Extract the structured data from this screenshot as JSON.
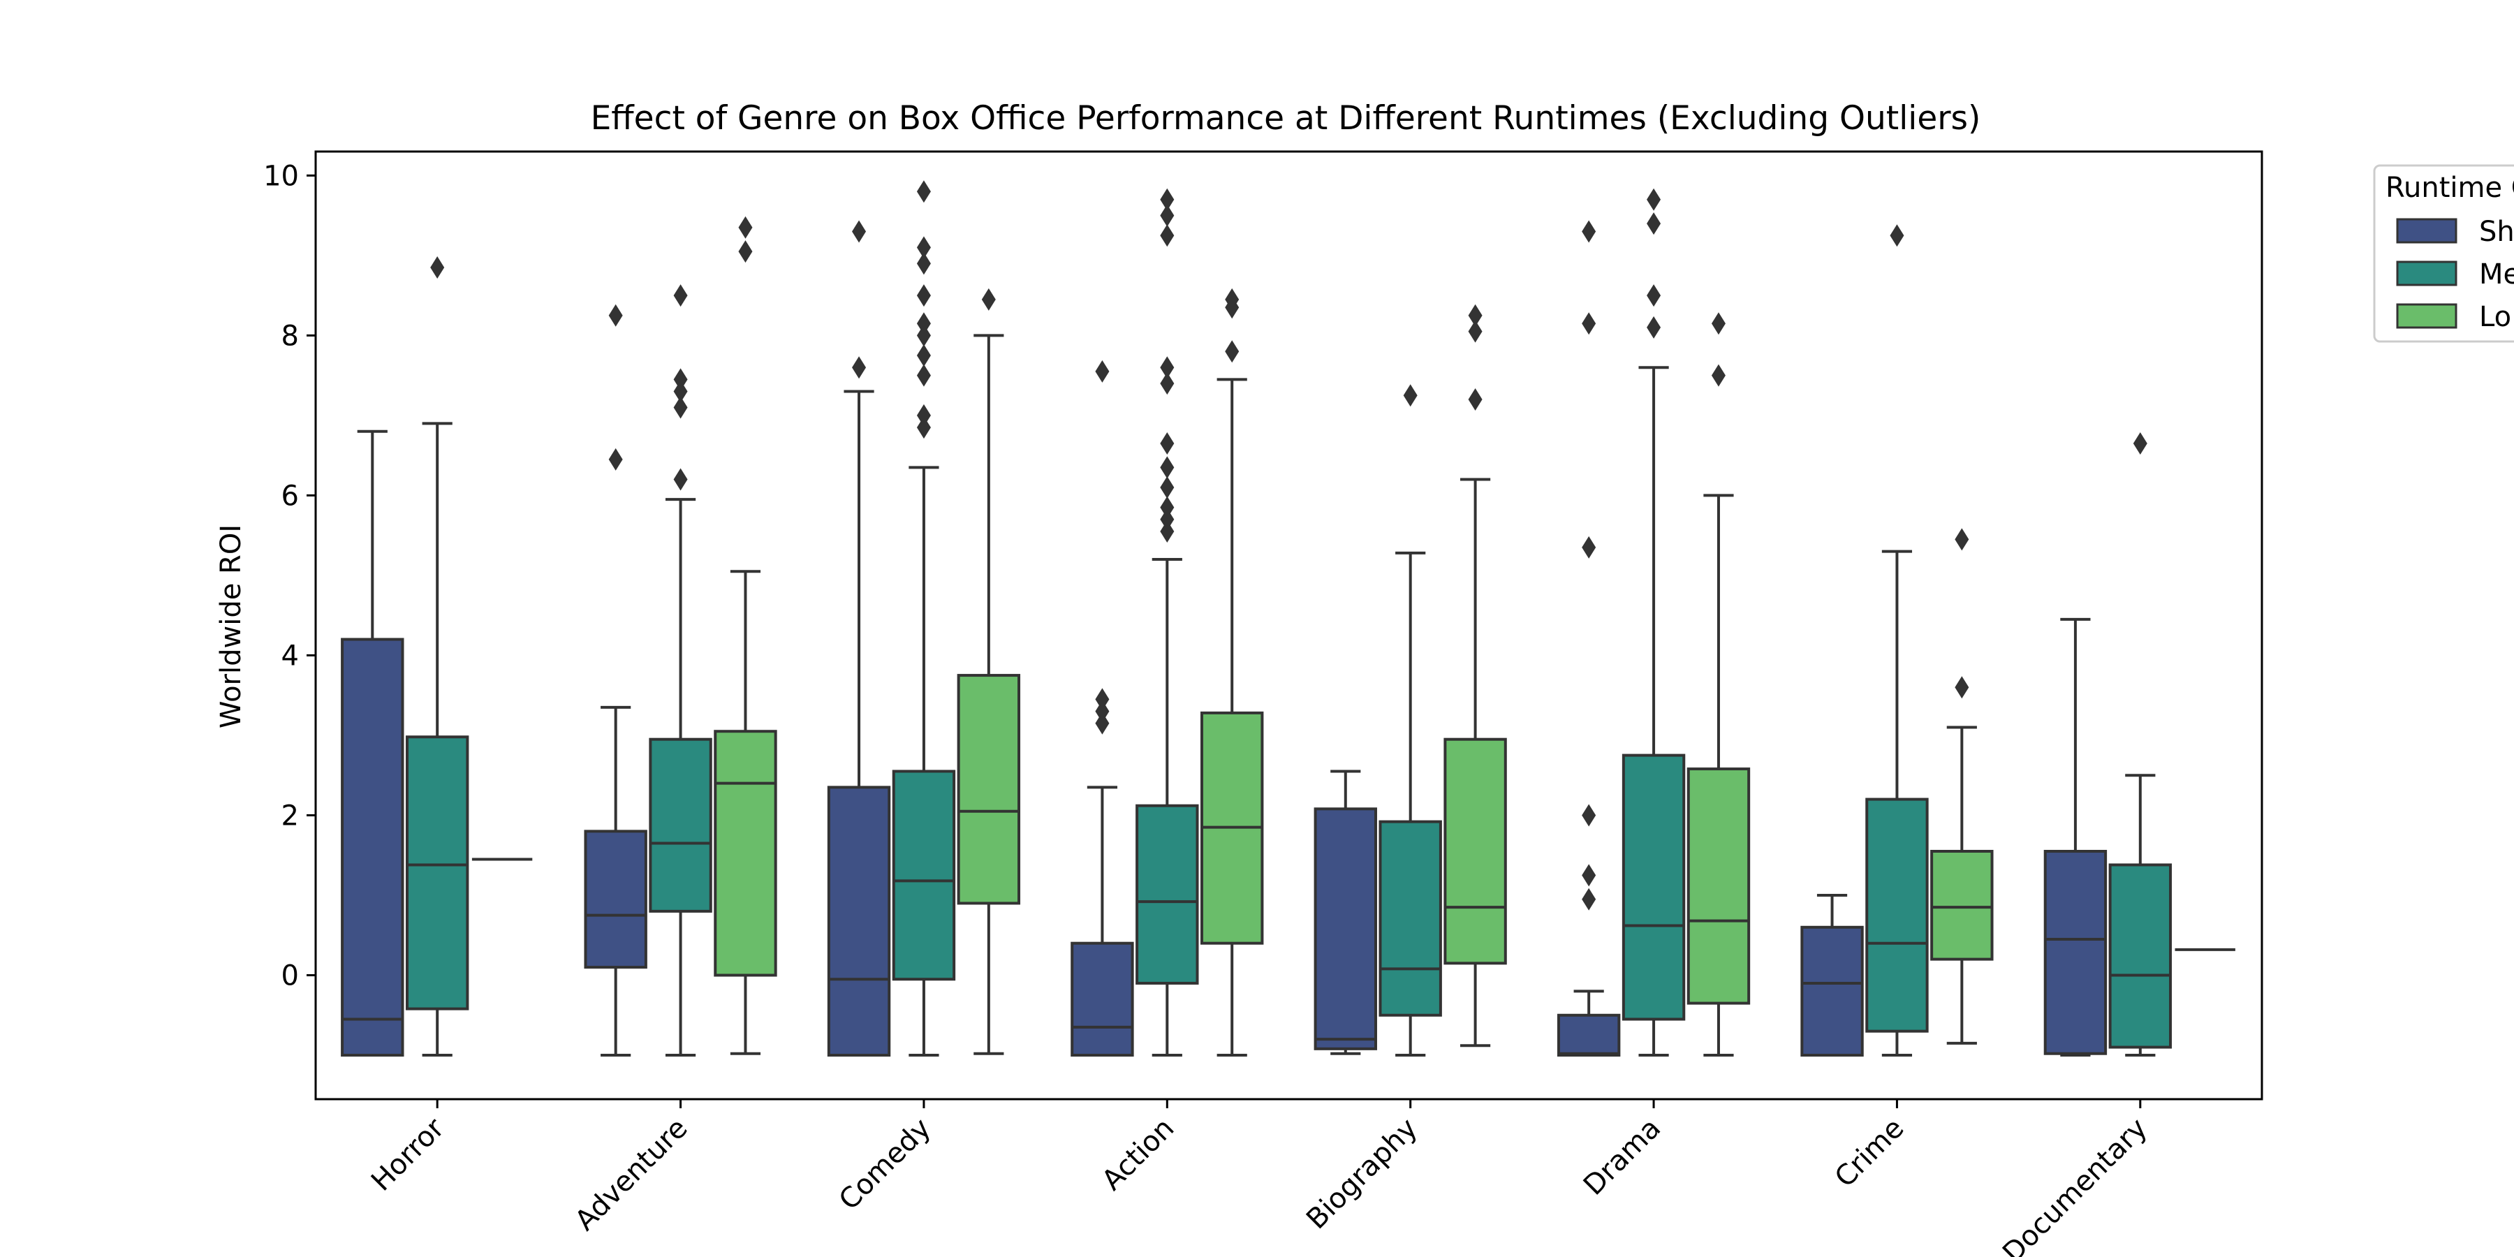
{
  "chart_data": {
    "type": "box",
    "title": "Effect of Genre on Box Office Performance at Different Runtimes (Excluding Outliers)",
    "xlabel": "",
    "ylabel": "Worldwide ROI",
    "ylim": [
      -1.55,
      10.3
    ],
    "yticks": [
      0,
      2,
      4,
      6,
      8,
      10
    ],
    "grid": false,
    "categories": [
      "Horror",
      "Adventure",
      "Comedy",
      "Action",
      "Biography",
      "Drama",
      "Crime",
      "Documentary"
    ],
    "legend": {
      "title": "Runtime Category",
      "placement": "outside-top-right",
      "entries_visible": [
        "Sh",
        "Me",
        "Lo"
      ]
    },
    "series": [
      {
        "color": "#3f5185",
        "boxes": [
          {
            "q1": -1.0,
            "median": -0.55,
            "q3": 4.2,
            "whislo": -1.0,
            "whishi": 6.8,
            "fliers": []
          },
          {
            "q1": 0.1,
            "median": 0.75,
            "q3": 1.8,
            "whislo": -1.0,
            "whishi": 3.35,
            "fliers": [
              6.45,
              8.25
            ]
          },
          {
            "q1": -1.0,
            "median": -0.05,
            "q3": 2.35,
            "whislo": -1.0,
            "whishi": 7.3,
            "fliers": [
              7.6,
              9.3
            ]
          },
          {
            "q1": -1.0,
            "median": -0.65,
            "q3": 0.4,
            "whislo": -1.0,
            "whishi": 2.35,
            "fliers": [
              3.15,
              3.3,
              3.45,
              7.55
            ]
          },
          {
            "q1": -0.92,
            "median": -0.8,
            "q3": 2.08,
            "whislo": -0.98,
            "whishi": 2.55,
            "fliers": []
          },
          {
            "q1": -1.0,
            "median": -0.98,
            "q3": -0.5,
            "whislo": -1.0,
            "whishi": -0.2,
            "fliers": [
              0.95,
              1.25,
              2.0,
              5.35,
              8.15,
              9.3
            ]
          },
          {
            "q1": -1.0,
            "median": -0.1,
            "q3": 0.6,
            "whislo": -1.0,
            "whishi": 1.0,
            "fliers": []
          },
          {
            "q1": -0.98,
            "median": 0.45,
            "q3": 1.55,
            "whislo": -1.0,
            "whishi": 4.45,
            "fliers": []
          }
        ]
      },
      {
        "color": "#2a8a7f",
        "boxes": [
          {
            "q1": -0.42,
            "median": 1.38,
            "q3": 2.98,
            "whislo": -1.0,
            "whishi": 6.9,
            "fliers": [
              8.85
            ]
          },
          {
            "q1": 0.8,
            "median": 1.65,
            "q3": 2.95,
            "whislo": -1.0,
            "whishi": 5.95,
            "fliers": [
              6.2,
              7.1,
              7.3,
              7.45,
              8.5
            ]
          },
          {
            "q1": -0.05,
            "median": 1.18,
            "q3": 2.55,
            "whislo": -1.0,
            "whishi": 6.35,
            "fliers": [
              6.85,
              7.0,
              7.5,
              7.75,
              8.0,
              8.15,
              8.5,
              8.9,
              9.1,
              9.8
            ]
          },
          {
            "q1": -0.1,
            "median": 0.92,
            "q3": 2.12,
            "whislo": -1.0,
            "whishi": 5.2,
            "fliers": [
              5.55,
              5.7,
              5.85,
              6.1,
              6.35,
              6.65,
              7.4,
              7.6,
              9.25,
              9.5,
              9.7
            ]
          },
          {
            "q1": -0.5,
            "median": 0.08,
            "q3": 1.92,
            "whislo": -1.0,
            "whishi": 5.28,
            "fliers": [
              7.25
            ]
          },
          {
            "q1": -0.55,
            "median": 0.62,
            "q3": 2.75,
            "whislo": -1.0,
            "whishi": 7.6,
            "fliers": [
              8.1,
              8.5,
              9.4,
              9.7
            ]
          },
          {
            "q1": -0.7,
            "median": 0.4,
            "q3": 2.2,
            "whislo": -1.0,
            "whishi": 5.3,
            "fliers": [
              9.25
            ]
          },
          {
            "q1": -0.9,
            "median": 0.0,
            "q3": 1.38,
            "whislo": -1.0,
            "whishi": 2.5,
            "fliers": [
              6.65
            ]
          }
        ]
      },
      {
        "color": "#6abd6a",
        "boxes": [
          {
            "q1": 1.45,
            "median": 1.45,
            "q3": 1.45,
            "whislo": 1.45,
            "whishi": 1.45,
            "fliers": []
          },
          {
            "q1": 0.0,
            "median": 2.4,
            "q3": 3.05,
            "whislo": -0.98,
            "whishi": 5.05,
            "fliers": [
              9.05,
              9.35
            ]
          },
          {
            "q1": 0.9,
            "median": 2.05,
            "q3": 3.75,
            "whislo": -0.98,
            "whishi": 8.0,
            "fliers": [
              8.45
            ]
          },
          {
            "q1": 0.4,
            "median": 1.85,
            "q3": 3.28,
            "whislo": -1.0,
            "whishi": 7.45,
            "fliers": [
              7.8,
              8.35,
              8.45
            ]
          },
          {
            "q1": 0.15,
            "median": 0.85,
            "q3": 2.95,
            "whislo": -0.88,
            "whishi": 6.2,
            "fliers": [
              7.2,
              8.05,
              8.25
            ]
          },
          {
            "q1": -0.35,
            "median": 0.68,
            "q3": 2.58,
            "whislo": -1.0,
            "whishi": 6.0,
            "fliers": [
              7.5,
              8.15
            ]
          },
          {
            "q1": 0.2,
            "median": 0.85,
            "q3": 1.55,
            "whislo": -0.85,
            "whishi": 3.1,
            "fliers": [
              3.6,
              5.45
            ]
          },
          {
            "q1": 0.32,
            "median": 0.32,
            "q3": 0.32,
            "whislo": 0.32,
            "whishi": 0.32,
            "fliers": []
          }
        ]
      }
    ]
  }
}
